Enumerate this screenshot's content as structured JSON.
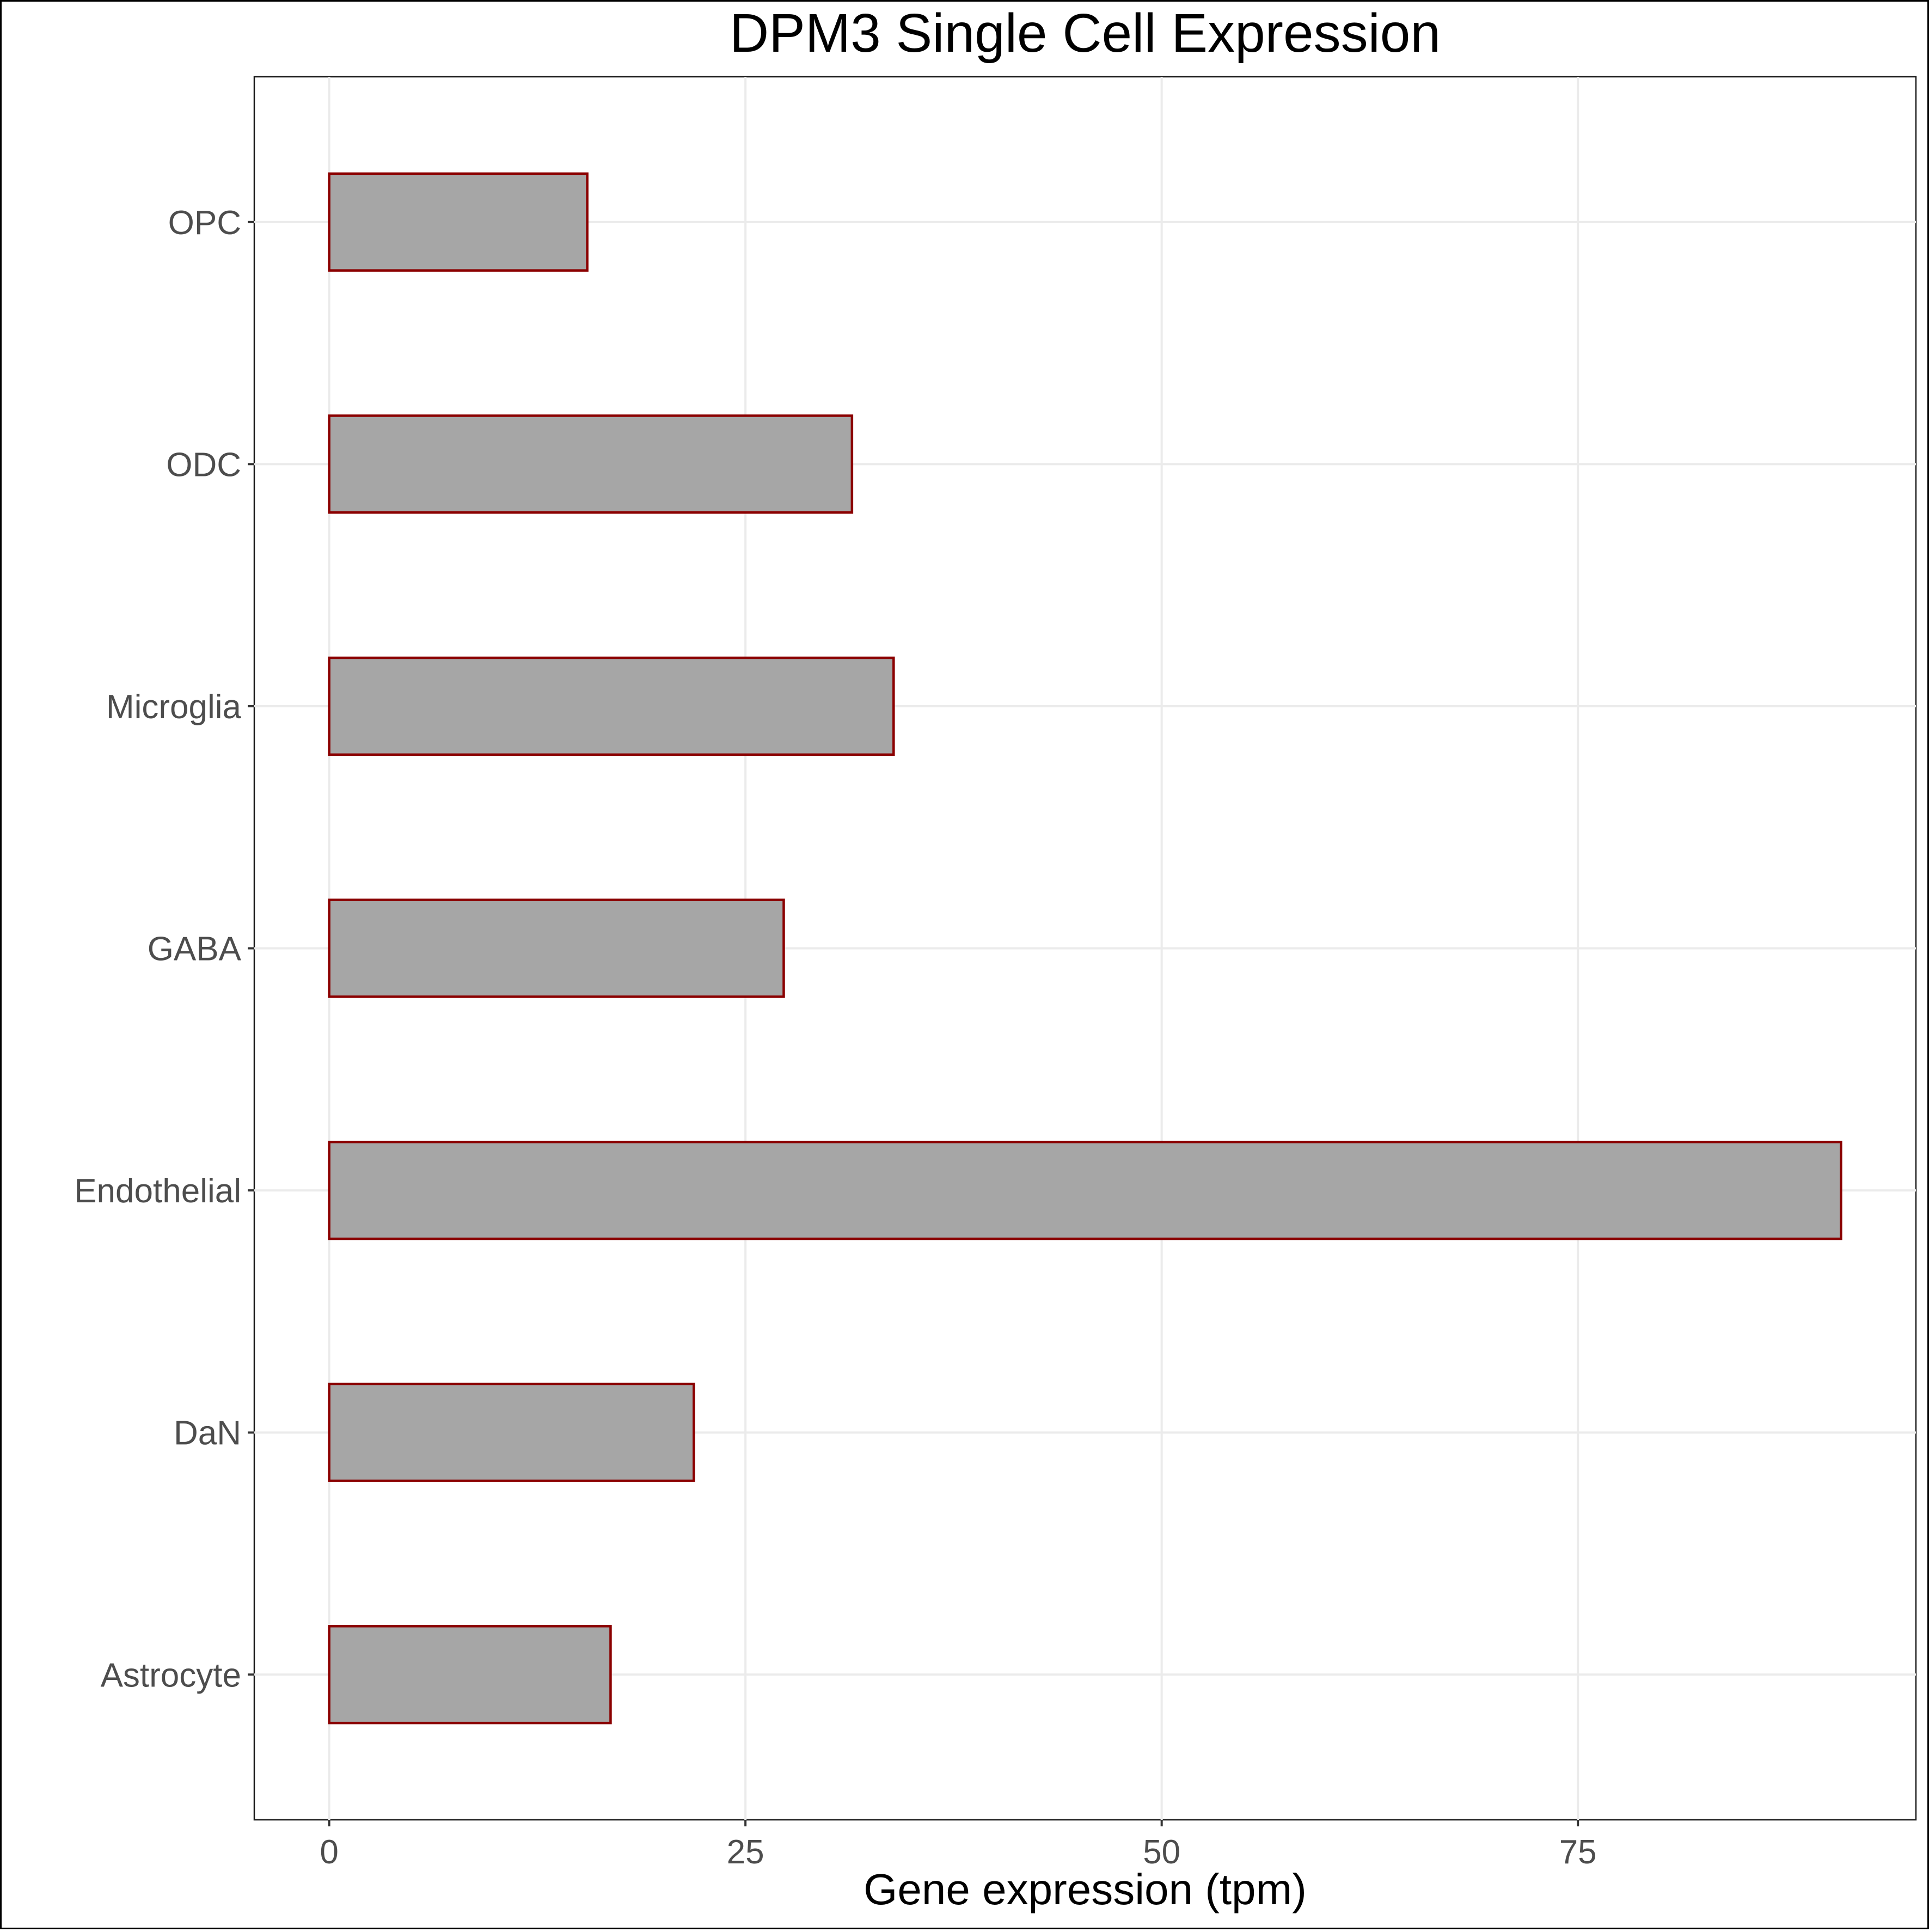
{
  "chart_data": {
    "type": "bar",
    "orientation": "horizontal",
    "title": "DPM3 Single Cell Expression",
    "xlabel": "Gene expression (tpm)",
    "ylabel": "",
    "categories": [
      "Astrocyte",
      "DaN",
      "Endothelial",
      "GABA",
      "Microglia",
      "ODC",
      "OPC"
    ],
    "values": [
      16.9,
      21.9,
      90.8,
      27.3,
      33.9,
      31.4,
      15.5
    ],
    "xlim": [
      -4.5,
      95.3
    ],
    "xticks": [
      0,
      25,
      50,
      75
    ],
    "xtick_labels": [
      "0",
      "25",
      "50",
      "75"
    ],
    "grid": true,
    "legend": "none",
    "colors": {
      "bar_fill": "#a6a6a6",
      "bar_outline": "#8b0000",
      "grid": "#ebebeb"
    }
  }
}
